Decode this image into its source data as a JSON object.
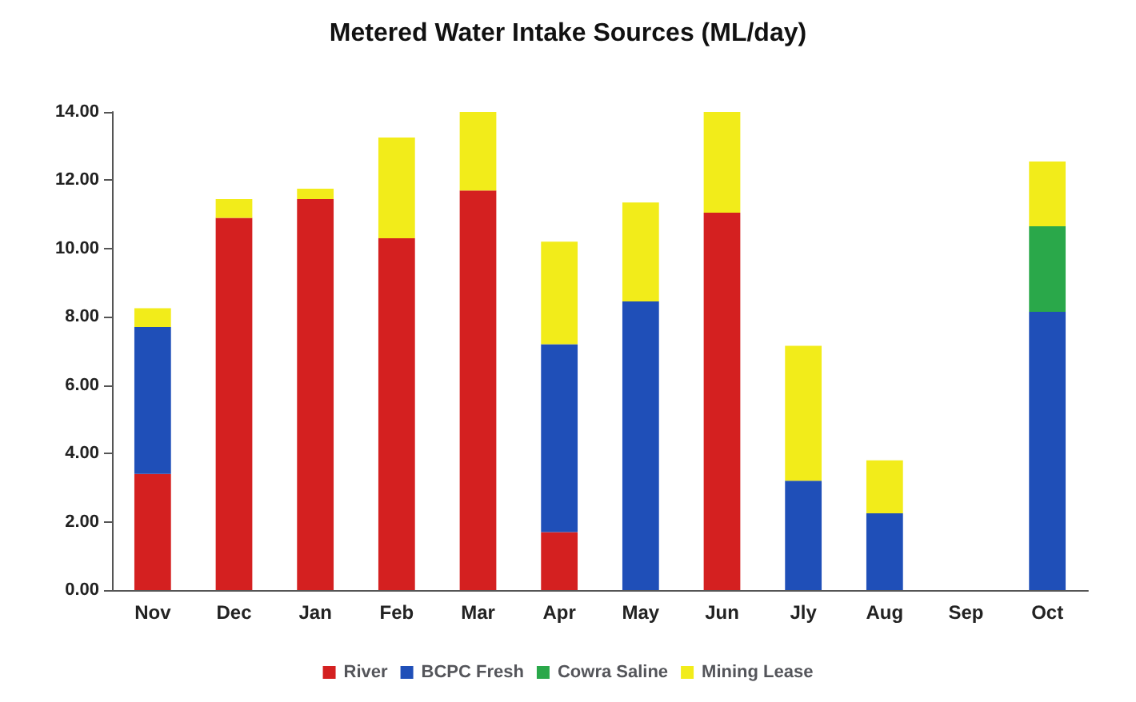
{
  "chart_data": {
    "type": "bar",
    "title": "Metered Water Intake Sources (ML/day)",
    "stacked": true,
    "legend": "bottom",
    "grid": false,
    "categories": [
      "Nov",
      "Dec",
      "Jan",
      "Feb",
      "Mar",
      "Apr",
      "May",
      "Jun",
      "Jly",
      "Aug",
      "Sep",
      "Oct"
    ],
    "series": [
      {
        "name": "River",
        "color": "#d42020",
        "values": [
          3.4,
          10.9,
          11.45,
          10.3,
          11.7,
          1.7,
          null,
          11.05,
          null,
          null,
          null,
          null
        ]
      },
      {
        "name": "BCPC Fresh",
        "color": "#1f4fb8",
        "values": [
          4.3,
          null,
          null,
          null,
          null,
          5.5,
          8.45,
          null,
          3.2,
          2.25,
          null,
          8.15
        ]
      },
      {
        "name": "Cowra Saline",
        "color": "#2aa84a",
        "values": [
          null,
          null,
          null,
          null,
          null,
          null,
          null,
          null,
          null,
          null,
          null,
          2.5
        ]
      },
      {
        "name": "Mining Lease",
        "color": "#f2ec1a",
        "values": [
          0.55,
          0.55,
          0.3,
          2.95,
          2.3,
          3.0,
          2.9,
          2.95,
          3.95,
          1.55,
          null,
          1.9
        ]
      }
    ],
    "ylim": [
      0,
      14
    ],
    "yticks": [
      {
        "value": 0,
        "label": "0.00"
      },
      {
        "value": 2,
        "label": "2.00"
      },
      {
        "value": 4,
        "label": "4.00"
      },
      {
        "value": 6,
        "label": "6.00"
      },
      {
        "value": 8,
        "label": "8.00"
      },
      {
        "value": 10,
        "label": "10.00"
      },
      {
        "value": 12,
        "label": "12.00"
      },
      {
        "value": 14,
        "label": "14.00"
      }
    ]
  }
}
